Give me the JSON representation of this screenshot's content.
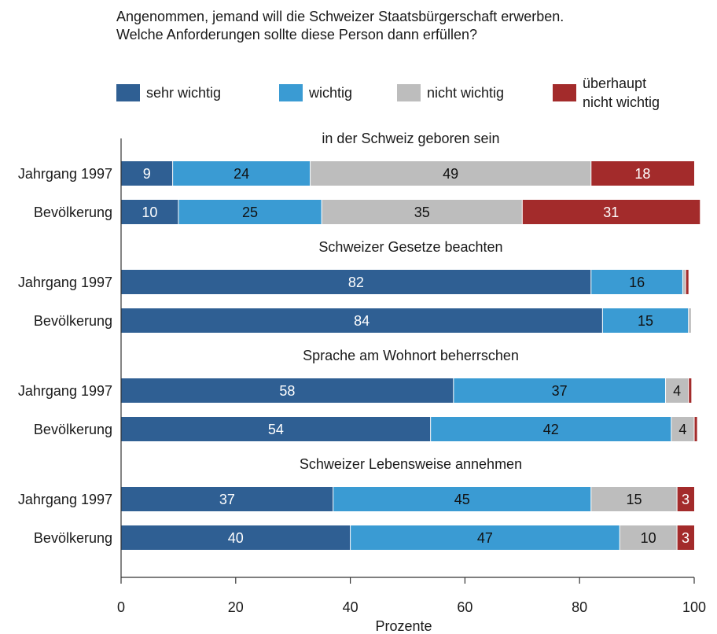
{
  "title_lines": [
    "Angenommen, jemand will die Schweizer Staatsbürgerschaft erwerben.",
    "Welche Anforderungen sollte diese Person dann erfüllen?"
  ],
  "chart_data": {
    "type": "bar",
    "orientation": "horizontal",
    "stacked": true,
    "title": "Angenommen, jemand will die Schweizer Staatsbürgerschaft erwerben. Welche Anforderungen sollte diese Person dann erfüllen?",
    "xlabel": "Prozente",
    "ylabel": "",
    "xlim": [
      0,
      100
    ],
    "xticks": [
      "0",
      "20",
      "40",
      "60",
      "80",
      "100"
    ],
    "grid": false,
    "legend_position": "top",
    "series": [
      {
        "name": "sehr wichtig",
        "color": "#2f5f93",
        "label_color": "#ffffff"
      },
      {
        "name": "wichtig",
        "color": "#3a9bd3",
        "label_color": "#111111"
      },
      {
        "name": "nicht wichtig",
        "color": "#bdbdbd",
        "label_color": "#111111"
      },
      {
        "name": "überhaupt\nnicht wichtig",
        "color": "#a32b2b",
        "label_color": "#ffffff"
      }
    ],
    "groups": [
      {
        "title": "in der Schweiz geboren sein",
        "rows": [
          {
            "label": "Jahrgang 1997",
            "values": [
              9,
              24,
              49,
              18
            ],
            "labels": [
              "9",
              "24",
              "49",
              "18"
            ]
          },
          {
            "label": "Bevölkerung",
            "values": [
              10,
              25,
              35,
              31
            ],
            "labels": [
              "10",
              "25",
              "35",
              "31"
            ]
          }
        ]
      },
      {
        "title": "Schweizer Gesetze beachten",
        "rows": [
          {
            "label": "Jahrgang 1997",
            "values": [
              82,
              16,
              0.5,
              0.5
            ],
            "labels": [
              "82",
              "16",
              "",
              ""
            ]
          },
          {
            "label": "Bevölkerung",
            "values": [
              84,
              15,
              0.5,
              0
            ],
            "labels": [
              "84",
              "15",
              "",
              ""
            ]
          }
        ]
      },
      {
        "title": "Sprache am Wohnort beherrschen",
        "rows": [
          {
            "label": "Jahrgang 1997",
            "values": [
              58,
              37,
              4,
              0.5
            ],
            "labels": [
              "58",
              "37",
              "4",
              ""
            ]
          },
          {
            "label": "Bevölkerung",
            "values": [
              54,
              42,
              4,
              0.5
            ],
            "labels": [
              "54",
              "42",
              "4",
              ""
            ]
          }
        ]
      },
      {
        "title": "Schweizer Lebensweise annehmen",
        "rows": [
          {
            "label": "Jahrgang 1997",
            "values": [
              37,
              45,
              15,
              3
            ],
            "labels": [
              "37",
              "45",
              "15",
              "3"
            ]
          },
          {
            "label": "Bevölkerung",
            "values": [
              40,
              47,
              10,
              3
            ],
            "labels": [
              "40",
              "47",
              "10",
              "3"
            ]
          }
        ]
      }
    ]
  }
}
